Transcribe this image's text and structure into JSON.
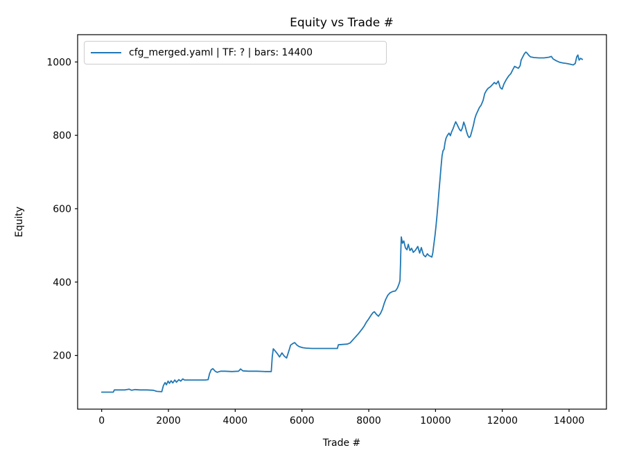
{
  "title": "Equity vs Trade #",
  "xlabel": "Trade #",
  "ylabel": "Equity",
  "legend": {
    "label": "cfg_merged.yaml | TF: ? | bars: 14400",
    "line_color": "#1f77b4",
    "position": "upper left"
  },
  "colors": {
    "line": "#1f77b4",
    "spine": "#000000",
    "legend_border": "#cccccc",
    "background": "#ffffff"
  },
  "chart_data": {
    "type": "line",
    "title": "Equity vs Trade #",
    "xlabel": "Trade #",
    "ylabel": "Equity",
    "xlim": [
      -720,
      15120
    ],
    "ylim": [
      53.6,
      1074.4
    ],
    "x_ticks": [
      0,
      2000,
      4000,
      6000,
      8000,
      10000,
      12000,
      14000
    ],
    "y_ticks": [
      200,
      400,
      600,
      800,
      1000
    ],
    "grid": false,
    "legend_position": "upper left",
    "series": [
      {
        "name": "cfg_merged.yaml | TF: ? | bars: 14400",
        "color": "#1f77b4",
        "points": [
          [
            0,
            100
          ],
          [
            180,
            100
          ],
          [
            350,
            100
          ],
          [
            380,
            106
          ],
          [
            600,
            106
          ],
          [
            700,
            106
          ],
          [
            820,
            108
          ],
          [
            900,
            105
          ],
          [
            1000,
            107
          ],
          [
            1150,
            106
          ],
          [
            1350,
            106
          ],
          [
            1550,
            105
          ],
          [
            1650,
            102
          ],
          [
            1800,
            101
          ],
          [
            1850,
            118
          ],
          [
            1900,
            126
          ],
          [
            1940,
            120
          ],
          [
            1990,
            130
          ],
          [
            2030,
            124
          ],
          [
            2080,
            131
          ],
          [
            2130,
            125
          ],
          [
            2190,
            133
          ],
          [
            2240,
            127
          ],
          [
            2310,
            134
          ],
          [
            2370,
            130
          ],
          [
            2430,
            136
          ],
          [
            2480,
            133
          ],
          [
            2600,
            133
          ],
          [
            2850,
            133
          ],
          [
            3100,
            133
          ],
          [
            3190,
            134
          ],
          [
            3230,
            150
          ],
          [
            3280,
            161
          ],
          [
            3330,
            164
          ],
          [
            3400,
            157
          ],
          [
            3460,
            154
          ],
          [
            3560,
            157
          ],
          [
            3700,
            157
          ],
          [
            3900,
            156
          ],
          [
            4100,
            157
          ],
          [
            4160,
            163
          ],
          [
            4230,
            158
          ],
          [
            4400,
            157
          ],
          [
            4650,
            157
          ],
          [
            4900,
            156
          ],
          [
            5080,
            156
          ],
          [
            5110,
            196
          ],
          [
            5140,
            218
          ],
          [
            5190,
            213
          ],
          [
            5260,
            205
          ],
          [
            5330,
            196
          ],
          [
            5400,
            207
          ],
          [
            5470,
            198
          ],
          [
            5540,
            193
          ],
          [
            5610,
            213
          ],
          [
            5660,
            228
          ],
          [
            5720,
            232
          ],
          [
            5780,
            235
          ],
          [
            5850,
            228
          ],
          [
            5920,
            224
          ],
          [
            6020,
            221
          ],
          [
            6120,
            220
          ],
          [
            6300,
            219
          ],
          [
            6600,
            219
          ],
          [
            6900,
            219
          ],
          [
            7060,
            219
          ],
          [
            7090,
            229
          ],
          [
            7220,
            230
          ],
          [
            7360,
            231
          ],
          [
            7440,
            234
          ],
          [
            7500,
            240
          ],
          [
            7570,
            247
          ],
          [
            7630,
            253
          ],
          [
            7690,
            259
          ],
          [
            7750,
            266
          ],
          [
            7810,
            273
          ],
          [
            7870,
            281
          ],
          [
            7930,
            291
          ],
          [
            7980,
            297
          ],
          [
            8030,
            304
          ],
          [
            8080,
            311
          ],
          [
            8130,
            317
          ],
          [
            8170,
            319
          ],
          [
            8230,
            312
          ],
          [
            8290,
            307
          ],
          [
            8350,
            314
          ],
          [
            8410,
            326
          ],
          [
            8460,
            341
          ],
          [
            8510,
            353
          ],
          [
            8570,
            364
          ],
          [
            8630,
            370
          ],
          [
            8710,
            374
          ],
          [
            8800,
            376
          ],
          [
            8860,
            384
          ],
          [
            8910,
            396
          ],
          [
            8935,
            404
          ],
          [
            8950,
            445
          ],
          [
            8962,
            490
          ],
          [
            8975,
            523
          ],
          [
            9010,
            506
          ],
          [
            9050,
            512
          ],
          [
            9100,
            493
          ],
          [
            9145,
            488
          ],
          [
            9185,
            503
          ],
          [
            9235,
            486
          ],
          [
            9285,
            492
          ],
          [
            9335,
            481
          ],
          [
            9400,
            487
          ],
          [
            9470,
            497
          ],
          [
            9525,
            479
          ],
          [
            9575,
            494
          ],
          [
            9640,
            474
          ],
          [
            9700,
            469
          ],
          [
            9755,
            477
          ],
          [
            9805,
            472
          ],
          [
            9855,
            470
          ],
          [
            9890,
            468
          ],
          [
            9920,
            480
          ],
          [
            9950,
            503
          ],
          [
            9985,
            528
          ],
          [
            10015,
            553
          ],
          [
            10045,
            581
          ],
          [
            10075,
            614
          ],
          [
            10105,
            648
          ],
          [
            10135,
            681
          ],
          [
            10165,
            713
          ],
          [
            10195,
            744
          ],
          [
            10225,
            758
          ],
          [
            10255,
            762
          ],
          [
            10285,
            780
          ],
          [
            10315,
            792
          ],
          [
            10355,
            800
          ],
          [
            10405,
            806
          ],
          [
            10445,
            799
          ],
          [
            10485,
            810
          ],
          [
            10525,
            818
          ],
          [
            10565,
            828
          ],
          [
            10605,
            837
          ],
          [
            10645,
            830
          ],
          [
            10685,
            822
          ],
          [
            10725,
            815
          ],
          [
            10765,
            812
          ],
          [
            10805,
            820
          ],
          [
            10845,
            836
          ],
          [
            10885,
            826
          ],
          [
            10925,
            812
          ],
          [
            10965,
            800
          ],
          [
            11005,
            794
          ],
          [
            11045,
            797
          ],
          [
            11090,
            812
          ],
          [
            11135,
            827
          ],
          [
            11175,
            845
          ],
          [
            11215,
            856
          ],
          [
            11265,
            866
          ],
          [
            11315,
            876
          ],
          [
            11365,
            882
          ],
          [
            11425,
            895
          ],
          [
            11475,
            914
          ],
          [
            11525,
            922
          ],
          [
            11575,
            928
          ],
          [
            11640,
            932
          ],
          [
            11700,
            938
          ],
          [
            11760,
            944
          ],
          [
            11820,
            940
          ],
          [
            11880,
            948
          ],
          [
            11940,
            930
          ],
          [
            11995,
            926
          ],
          [
            12050,
            940
          ],
          [
            12120,
            952
          ],
          [
            12190,
            962
          ],
          [
            12255,
            968
          ],
          [
            12310,
            978
          ],
          [
            12370,
            988
          ],
          [
            12430,
            985
          ],
          [
            12485,
            983
          ],
          [
            12535,
            990
          ],
          [
            12565,
            1005
          ],
          [
            12615,
            1014
          ],
          [
            12660,
            1022
          ],
          [
            12705,
            1027
          ],
          [
            12745,
            1024
          ],
          [
            12795,
            1018
          ],
          [
            12845,
            1014
          ],
          [
            12950,
            1012
          ],
          [
            13100,
            1011
          ],
          [
            13250,
            1011
          ],
          [
            13400,
            1013
          ],
          [
            13470,
            1015
          ],
          [
            13525,
            1008
          ],
          [
            13625,
            1003
          ],
          [
            13725,
            999
          ],
          [
            13825,
            997
          ],
          [
            13925,
            996
          ],
          [
            14025,
            994
          ],
          [
            14125,
            992
          ],
          [
            14185,
            996
          ],
          [
            14230,
            1014
          ],
          [
            14265,
            1019
          ],
          [
            14300,
            1005
          ],
          [
            14345,
            1010
          ],
          [
            14400,
            1007
          ]
        ]
      }
    ]
  }
}
